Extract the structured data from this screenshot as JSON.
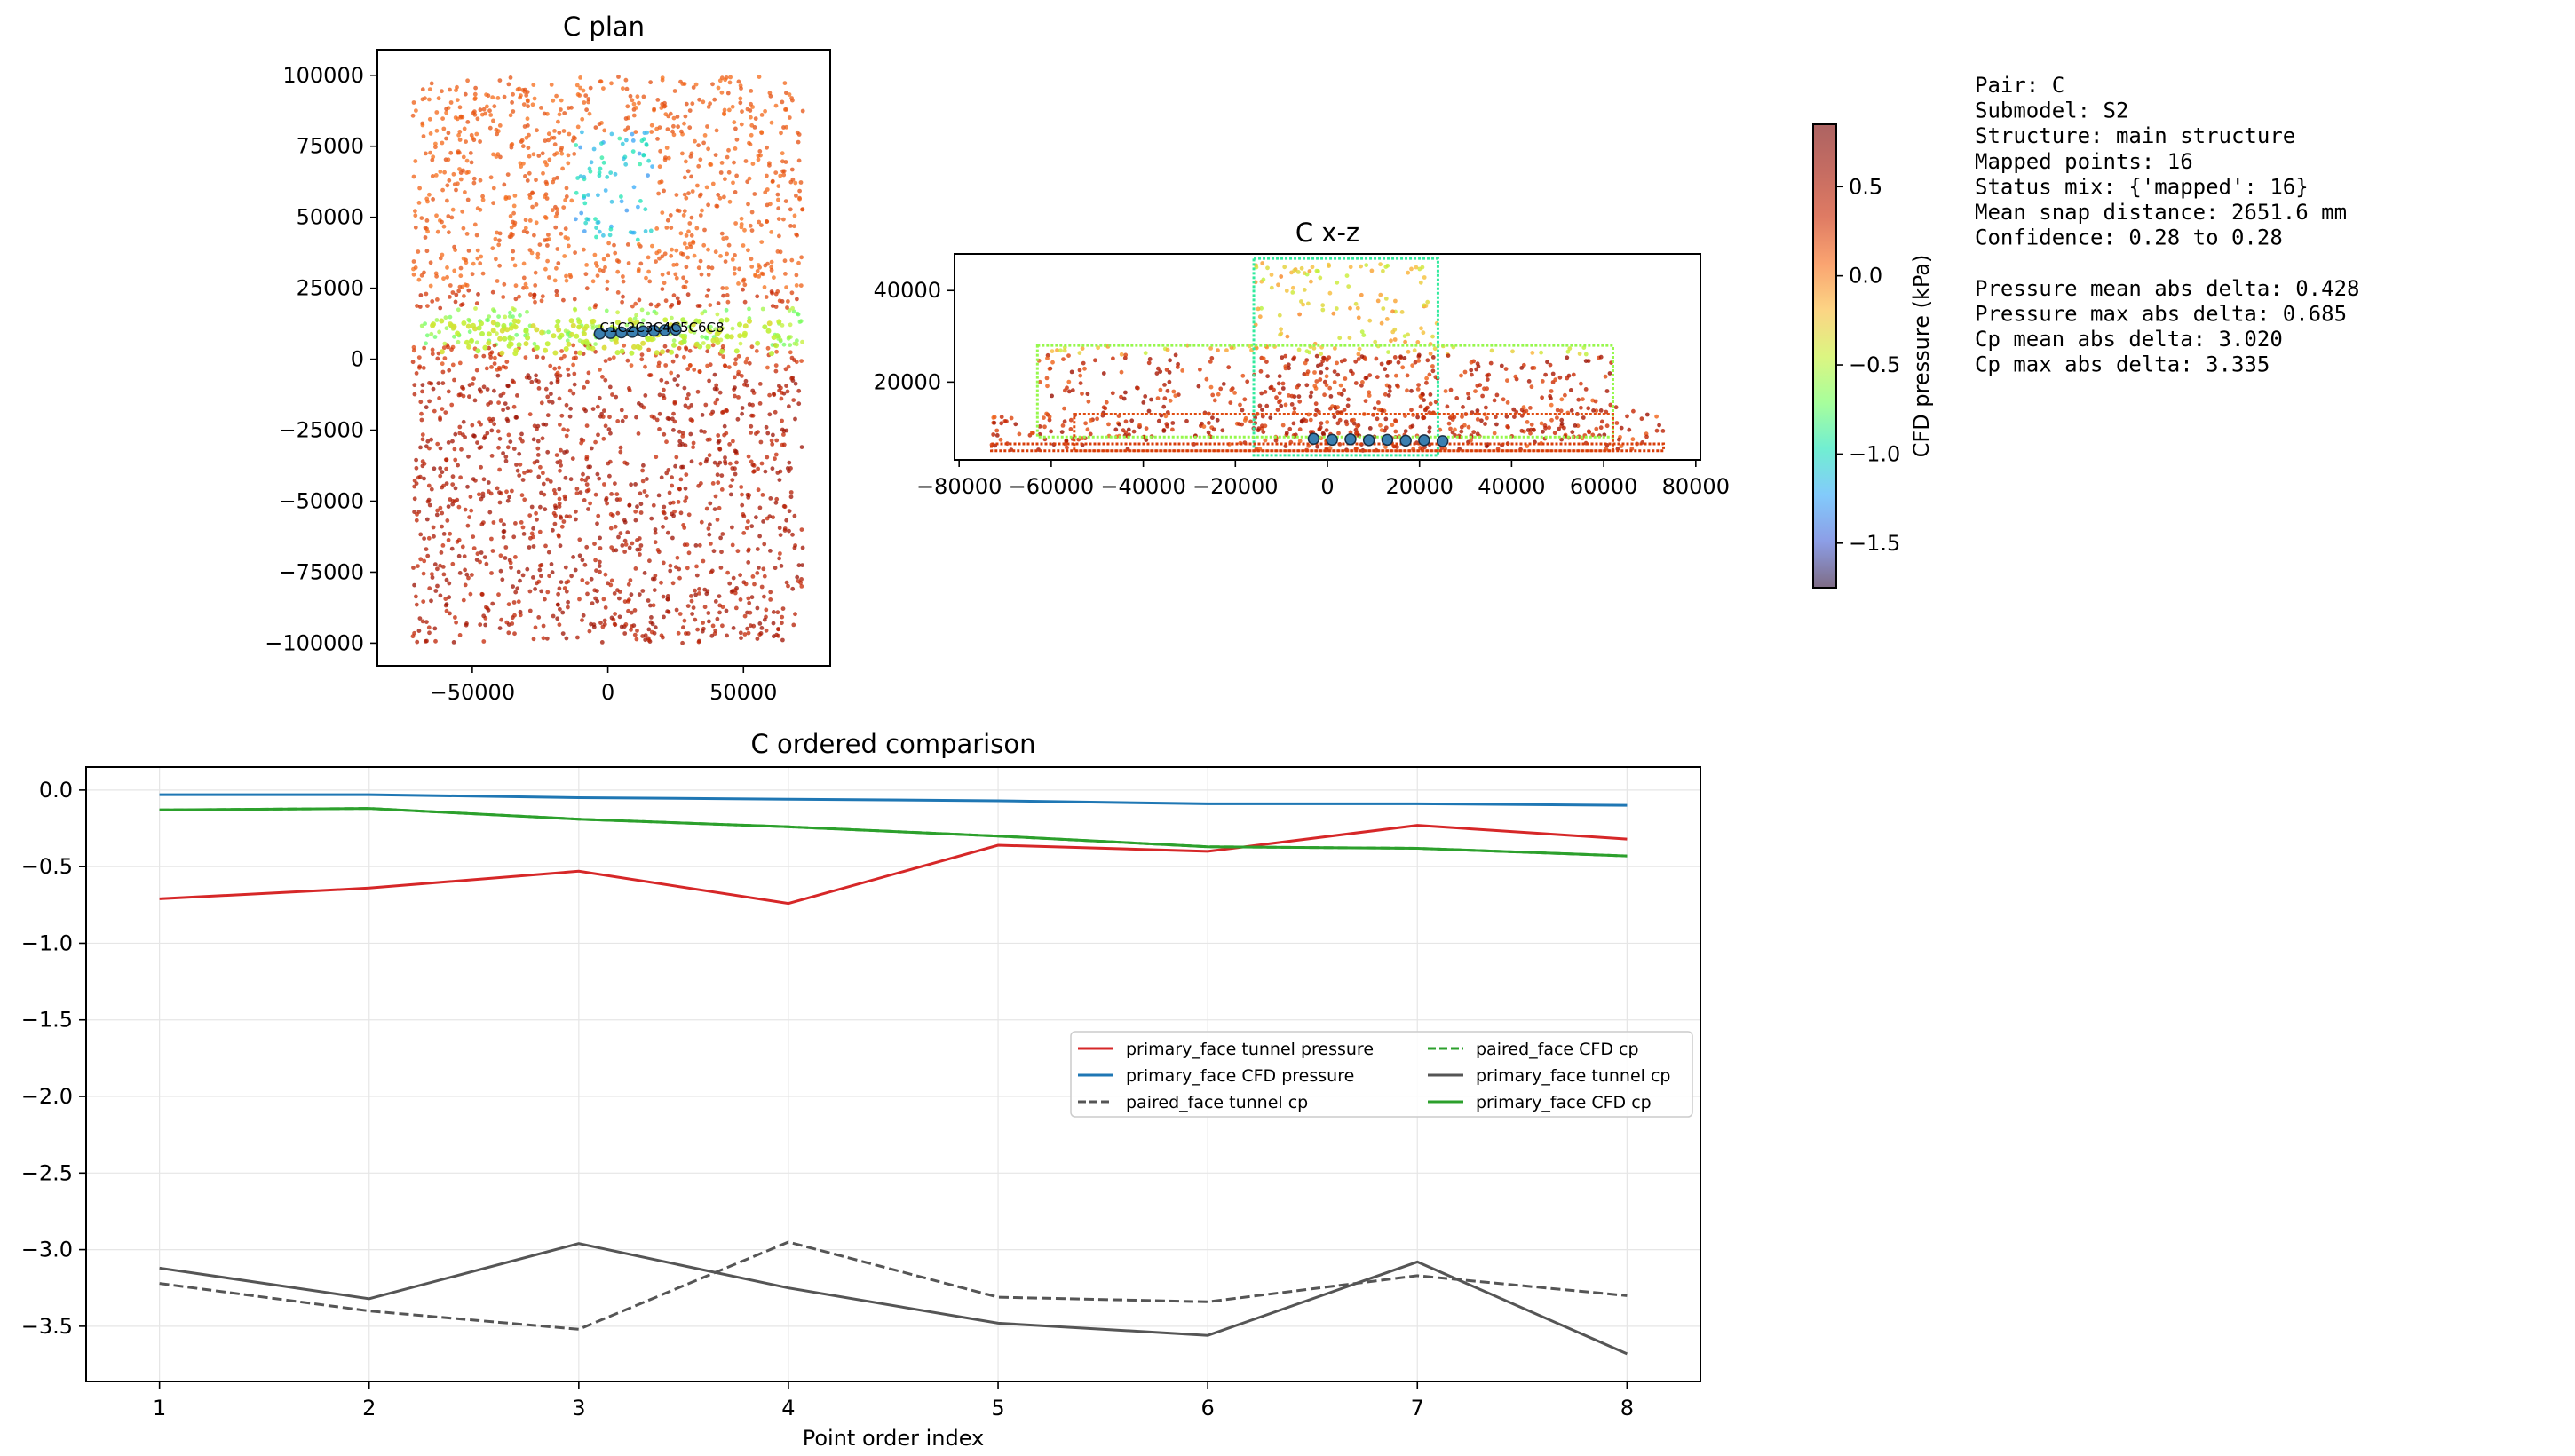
{
  "colors": {
    "tunnel_pressure": "#d62728",
    "cfd_pressure": "#1f77b4",
    "paired_tunnel_cp": "#555555",
    "primary_tunnel_cp": "#555555",
    "paired_cfd_cp": "#2ca02c",
    "primary_cfd_cp": "#2ca02c"
  },
  "colormap": "turbo",
  "colorbar": {
    "label": "CFD pressure (kPa)",
    "range": [
      -1.75,
      0.85
    ],
    "ticks": [
      0.5,
      0.0,
      -0.5,
      -1.0,
      -1.5
    ],
    "tick_labels": [
      "0.5",
      "0.0",
      "−0.5",
      "−1.0",
      "−1.5"
    ]
  },
  "info_lines": [
    "Pair: C",
    "Submodel: S2",
    "Structure: main structure",
    "Mapped points: 16",
    "Status mix: {'mapped': 16}",
    "Mean snap distance: 2651.6 mm",
    "Confidence: 0.28 to 0.28",
    "",
    "Pressure mean abs delta: 0.428",
    "Pressure max abs delta: 0.685",
    "Cp mean abs delta: 3.020",
    "Cp max abs delta: 3.335"
  ],
  "chart_data": [
    {
      "type": "scatter",
      "title": "C plan",
      "xlim": [
        -85000,
        82000
      ],
      "ylim": [
        -108000,
        109000
      ],
      "xticks": [
        -50000,
        0,
        50000
      ],
      "xtick_labels": [
        "−50000",
        "0",
        "50000"
      ],
      "yticks": [
        100000,
        75000,
        50000,
        25000,
        0,
        -25000,
        -50000,
        -75000,
        -100000
      ],
      "ytick_labels": [
        "100000",
        "75000",
        "50000",
        "25000",
        "0",
        "−25000",
        "−50000",
        "−75000",
        "−100000"
      ],
      "grid": false,
      "annotation": "C1C2C3C4C5C6C8",
      "mapped_points": {
        "x": [
          -3000,
          1000,
          5000,
          9000,
          13000,
          17000,
          21000,
          25000
        ],
        "y": [
          9000,
          9200,
          9400,
          9600,
          9800,
          10000,
          10200,
          10400
        ]
      }
    },
    {
      "type": "scatter",
      "title": "C x-z",
      "xlim": [
        -81000,
        81000
      ],
      "ylim": [
        3000,
        48000
      ],
      "xticks": [
        -80000,
        -60000,
        -40000,
        -20000,
        0,
        20000,
        40000,
        60000,
        80000
      ],
      "xtick_labels": [
        "−80000",
        "−60000",
        "−40000",
        "−20000",
        "0",
        "20000",
        "40000",
        "60000",
        "80000"
      ],
      "yticks": [
        40000,
        20000
      ],
      "ytick_labels": [
        "40000",
        "20000"
      ],
      "grid": false,
      "mapped_points": {
        "x": [
          -3000,
          1000,
          5000,
          9000,
          13000,
          17000,
          21000,
          25000
        ],
        "z": [
          7600,
          7400,
          7500,
          7300,
          7400,
          7200,
          7300,
          7100
        ]
      }
    },
    {
      "type": "line",
      "title": "C ordered comparison",
      "xlabel": "Point order index",
      "ylabel": "",
      "xlim": [
        0.65,
        8.35
      ],
      "ylim": [
        -3.86,
        0.15
      ],
      "xticks": [
        1,
        2,
        3,
        4,
        5,
        6,
        7,
        8
      ],
      "yticks": [
        0.0,
        -0.5,
        -1.0,
        -1.5,
        -2.0,
        -2.5,
        -3.0,
        -3.5
      ],
      "ytick_labels": [
        "0.0",
        "−0.5",
        "−1.0",
        "−1.5",
        "−2.0",
        "−2.5",
        "−3.0",
        "−3.5"
      ],
      "grid": true,
      "legend_position": "center-right",
      "x": [
        1,
        2,
        3,
        4,
        5,
        6,
        7,
        8
      ],
      "series": [
        {
          "name": "primary_face tunnel pressure",
          "color_key": "tunnel_pressure",
          "dash": "solid",
          "values": [
            -0.71,
            -0.64,
            -0.53,
            -0.74,
            -0.36,
            -0.4,
            -0.23,
            -0.32
          ]
        },
        {
          "name": "primary_face CFD pressure",
          "color_key": "cfd_pressure",
          "dash": "solid",
          "values": [
            -0.03,
            -0.03,
            -0.05,
            -0.06,
            -0.07,
            -0.09,
            -0.09,
            -0.1
          ]
        },
        {
          "name": "paired_face tunnel cp",
          "color_key": "paired_tunnel_cp",
          "dash": "dashed",
          "values": [
            -3.22,
            -3.4,
            -3.52,
            -2.95,
            -3.31,
            -3.34,
            -3.17,
            -3.3
          ]
        },
        {
          "name": "paired_face CFD cp",
          "color_key": "paired_cfd_cp",
          "dash": "dashed",
          "values": [
            -0.13,
            -0.12,
            -0.19,
            -0.24,
            -0.3,
            -0.37,
            -0.38,
            -0.43
          ]
        },
        {
          "name": "primary_face tunnel cp",
          "color_key": "primary_tunnel_cp",
          "dash": "solid",
          "values": [
            -3.12,
            -3.32,
            -2.96,
            -3.25,
            -3.48,
            -3.56,
            -3.08,
            -3.68
          ]
        },
        {
          "name": "primary_face CFD cp",
          "color_key": "primary_cfd_cp",
          "dash": "solid",
          "values": [
            -0.13,
            -0.12,
            -0.19,
            -0.24,
            -0.3,
            -0.37,
            -0.38,
            -0.43
          ]
        }
      ]
    }
  ]
}
